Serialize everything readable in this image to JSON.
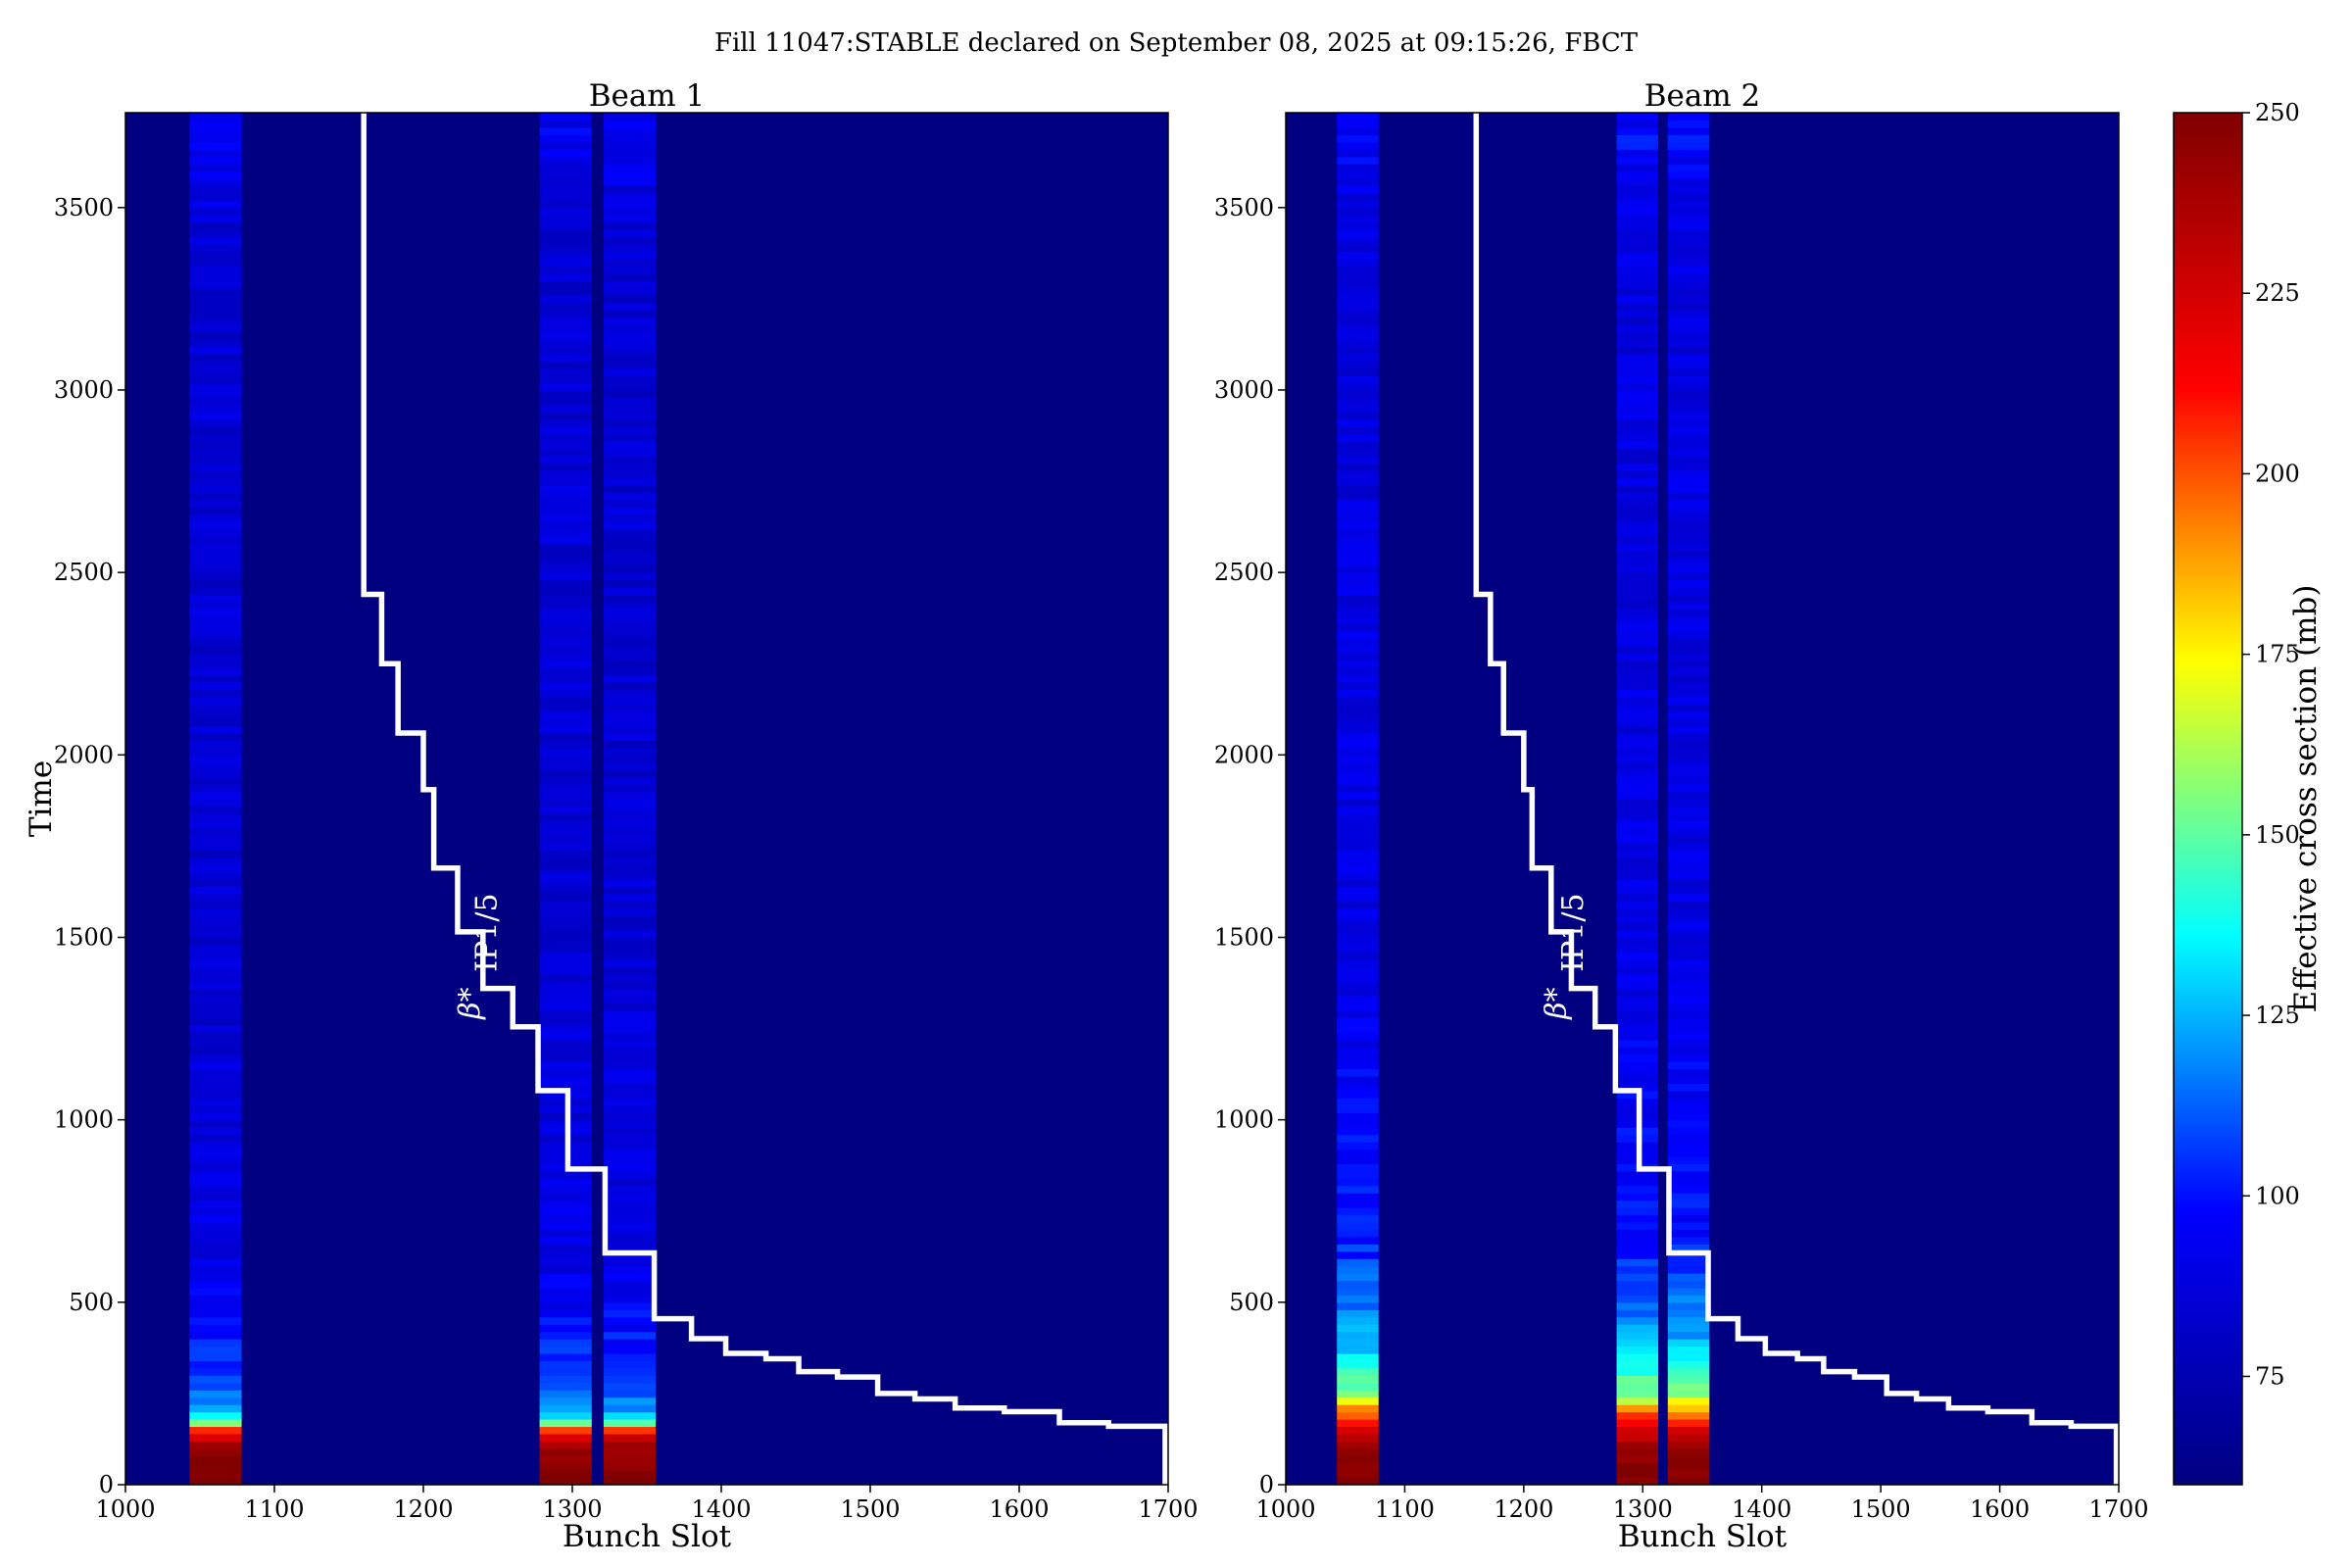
{
  "figure": {
    "title": "Fill 11047:STABLE declared on September 08, 2025 at 09:15:26, FBCT",
    "background": "#000080",
    "step_line_color": "#ffffff"
  },
  "chart_data": [
    {
      "type": "heatmap",
      "title": "Beam 1",
      "xlabel": "Bunch Slot",
      "ylabel": "Time",
      "xlim": [
        1000,
        1700
      ],
      "ylim": [
        0,
        3760
      ],
      "xticks": [
        1000,
        1100,
        1200,
        1300,
        1400,
        1500,
        1600,
        1700
      ],
      "yticks": [
        0,
        500,
        1000,
        1500,
        2000,
        2500,
        3000,
        3500
      ],
      "bands": [
        {
          "x_start": 1043,
          "x_end": 1078,
          "profile": [
            [
              0,
              250
            ],
            [
              40,
              250
            ],
            [
              110,
              240
            ],
            [
              145,
              215
            ],
            [
              175,
              140
            ],
            [
              210,
              120
            ],
            [
              320,
              105
            ],
            [
              600,
              90
            ],
            [
              1500,
              85
            ],
            [
              3450,
              85
            ],
            [
              3700,
              95
            ],
            [
              3760,
              90
            ]
          ]
        },
        {
          "x_start": 1278,
          "x_end": 1313,
          "profile": [
            [
              0,
              250
            ],
            [
              40,
              250
            ],
            [
              110,
              240
            ],
            [
              145,
              215
            ],
            [
              175,
              140
            ],
            [
              210,
              120
            ],
            [
              320,
              105
            ],
            [
              600,
              90
            ],
            [
              1500,
              85
            ],
            [
              3450,
              85
            ],
            [
              3700,
              95
            ],
            [
              3760,
              90
            ]
          ]
        },
        {
          "x_start": 1321,
          "x_end": 1356,
          "profile": [
            [
              0,
              250
            ],
            [
              40,
              250
            ],
            [
              110,
              240
            ],
            [
              145,
              215
            ],
            [
              175,
              140
            ],
            [
              210,
              120
            ],
            [
              320,
              105
            ],
            [
              600,
              90
            ],
            [
              1500,
              85
            ],
            [
              3450,
              85
            ],
            [
              3700,
              95
            ],
            [
              3760,
              90
            ]
          ]
        }
      ],
      "step_line": {
        "x": [
          1160,
          1160,
          1172,
          1172,
          1183,
          1183,
          1200,
          1200,
          1207,
          1207,
          1223,
          1223,
          1240,
          1240,
          1260,
          1260,
          1277,
          1277,
          1297,
          1297,
          1322,
          1322,
          1355,
          1355,
          1380,
          1380,
          1403,
          1403,
          1430,
          1430,
          1452,
          1452,
          1478,
          1478,
          1505,
          1505,
          1530,
          1530,
          1557,
          1557,
          1590,
          1590,
          1627,
          1627,
          1660,
          1660,
          1698,
          1698
        ],
        "y": [
          3760,
          2440,
          2440,
          2250,
          2250,
          2060,
          2060,
          1905,
          1905,
          1690,
          1690,
          1515,
          1515,
          1360,
          1360,
          1255,
          1255,
          1080,
          1080,
          865,
          865,
          635,
          635,
          455,
          455,
          400,
          400,
          360,
          360,
          345,
          345,
          310,
          310,
          295,
          295,
          250,
          250,
          235,
          235,
          210,
          210,
          200,
          200,
          170,
          170,
          160,
          160,
          0
        ]
      },
      "annotation": {
        "text_main": "β*",
        "text_sub": "IP1/5",
        "x": 1247,
        "y": 1400
      }
    },
    {
      "type": "heatmap",
      "title": "Beam 2",
      "xlabel": "Bunch Slot",
      "ylabel": "",
      "xlim": [
        1000,
        1700
      ],
      "ylim": [
        0,
        3760
      ],
      "xticks": [
        1000,
        1100,
        1200,
        1300,
        1400,
        1500,
        1600,
        1700
      ],
      "yticks": [
        0,
        500,
        1000,
        1500,
        2000,
        2500,
        3000,
        3500
      ],
      "bands": [
        {
          "x_start": 1043,
          "x_end": 1078,
          "profile": [
            [
              0,
              250
            ],
            [
              100,
              245
            ],
            [
              150,
              225
            ],
            [
              200,
              195
            ],
            [
              240,
              160
            ],
            [
              320,
              140
            ],
            [
              430,
              120
            ],
            [
              700,
              100
            ],
            [
              1500,
              90
            ],
            [
              3450,
              88
            ],
            [
              3700,
              98
            ],
            [
              3760,
              92
            ]
          ]
        },
        {
          "x_start": 1278,
          "x_end": 1313,
          "profile": [
            [
              0,
              250
            ],
            [
              100,
              245
            ],
            [
              150,
              225
            ],
            [
              200,
              195
            ],
            [
              240,
              160
            ],
            [
              320,
              140
            ],
            [
              430,
              120
            ],
            [
              700,
              100
            ],
            [
              1500,
              90
            ],
            [
              3450,
              88
            ],
            [
              3700,
              98
            ],
            [
              3760,
              92
            ]
          ]
        },
        {
          "x_start": 1321,
          "x_end": 1356,
          "profile": [
            [
              0,
              250
            ],
            [
              100,
              245
            ],
            [
              150,
              225
            ],
            [
              200,
              195
            ],
            [
              240,
              160
            ],
            [
              320,
              140
            ],
            [
              430,
              120
            ],
            [
              700,
              100
            ],
            [
              1500,
              90
            ],
            [
              3450,
              88
            ],
            [
              3700,
              98
            ],
            [
              3760,
              92
            ]
          ]
        }
      ],
      "step_line": {
        "x": [
          1160,
          1160,
          1172,
          1172,
          1183,
          1183,
          1200,
          1200,
          1207,
          1207,
          1223,
          1223,
          1240,
          1240,
          1260,
          1260,
          1277,
          1277,
          1297,
          1297,
          1322,
          1322,
          1355,
          1355,
          1380,
          1380,
          1403,
          1403,
          1430,
          1430,
          1452,
          1452,
          1478,
          1478,
          1505,
          1505,
          1530,
          1530,
          1557,
          1557,
          1590,
          1590,
          1627,
          1627,
          1660,
          1660,
          1698,
          1698
        ],
        "y": [
          3760,
          2440,
          2440,
          2250,
          2250,
          2060,
          2060,
          1905,
          1905,
          1690,
          1690,
          1515,
          1515,
          1360,
          1360,
          1255,
          1255,
          1080,
          1080,
          865,
          865,
          635,
          635,
          455,
          455,
          400,
          400,
          360,
          360,
          345,
          345,
          310,
          310,
          295,
          295,
          250,
          250,
          235,
          235,
          210,
          210,
          200,
          200,
          170,
          170,
          160,
          160,
          0
        ]
      },
      "annotation": {
        "text_main": "β*",
        "text_sub": "IP1/5",
        "x": 1247,
        "y": 1400
      }
    }
  ],
  "colorbar": {
    "label": "Effective cross section (mb)",
    "vmin": 60,
    "vmax": 250,
    "ticks": [
      75,
      100,
      125,
      150,
      175,
      200,
      225,
      250
    ],
    "colormap": [
      "#000080",
      "#0000ff",
      "#00ffff",
      "#ffff00",
      "#ff0000",
      "#800000"
    ]
  }
}
